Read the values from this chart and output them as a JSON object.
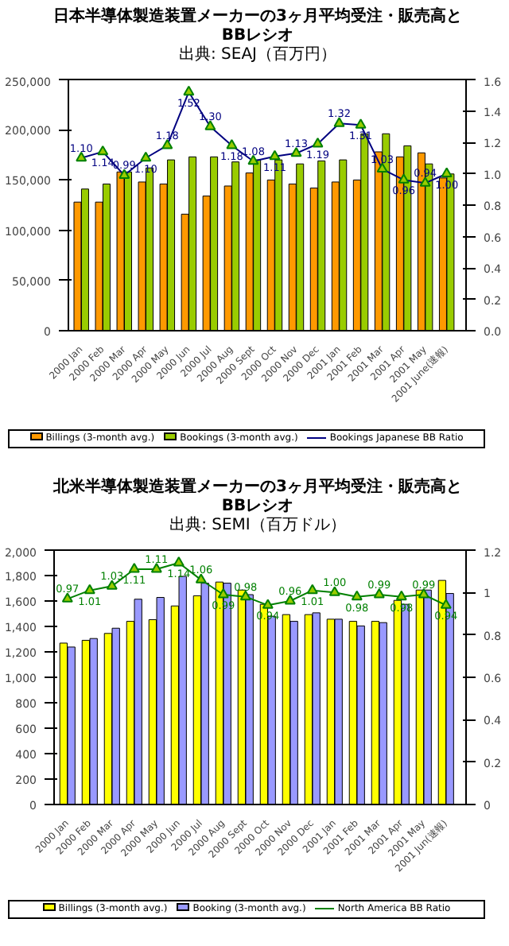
{
  "chart_data": [
    {
      "type": "bar",
      "title": "日本半導体製造装置メーカーの3ヶ月平均受注・販売高と\nBBレシオ",
      "subtitle": "出典: SEAJ（百万円）",
      "categories": [
        "2000 Jan",
        "2000 Feb",
        "2000 Mar",
        "2000 Apr",
        "2000 May",
        "2000 Jun",
        "2000 Jul",
        "2000 Aug",
        "2000 Sept",
        "2000 Oct",
        "2000 Nov",
        "2000 Dec",
        "2001 Jan",
        "2001 Feb",
        "2001 Mar",
        "2001 Apr",
        "2001 May",
        "2001 June(速報)"
      ],
      "series": [
        {
          "name": "Billings (3-month avg.)",
          "color": "#ff9900",
          "values": [
            128000,
            128000,
            158000,
            148000,
            146000,
            116000,
            134000,
            144000,
            157000,
            150000,
            146000,
            142000,
            148000,
            150000,
            178000,
            173000,
            177000,
            152000
          ]
        },
        {
          "name": "Bookings (3-month avg.)",
          "color": "#99cc00",
          "values": [
            141000,
            146000,
            158000,
            162000,
            170000,
            173000,
            173000,
            168000,
            170000,
            170000,
            166000,
            169000,
            170000,
            196000,
            196000,
            184000,
            166000,
            156000
          ]
        },
        {
          "name": "Bookings Japanese BB Ratio",
          "type": "line",
          "axis": "y2",
          "color": "#000080",
          "marker": "triangle",
          "values": [
            1.1,
            1.14,
            0.99,
            1.1,
            1.18,
            1.52,
            1.3,
            1.18,
            1.08,
            1.11,
            1.13,
            1.19,
            1.32,
            1.31,
            1.03,
            0.96,
            0.94,
            1.0
          ],
          "value_labels": [
            "1.10",
            "1.14",
            "0.99",
            "1.10",
            "1.18",
            "1.52",
            "1.30",
            "1.18",
            "1.08",
            "1.11",
            "1.13",
            "1.19",
            "1.32",
            "1.31",
            "1.03",
            "0.96",
            "0.94",
            "1.00"
          ]
        }
      ],
      "ylim": [
        0,
        250000
      ],
      "yticks": [
        {
          "value": 0,
          "label": "0"
        },
        {
          "value": 50000,
          "label": "50,000"
        },
        {
          "value": 100000,
          "label": "100,000"
        },
        {
          "value": 150000,
          "label": "150,000"
        },
        {
          "value": 200000,
          "label": "200,000"
        },
        {
          "value": 250000,
          "label": "250,000"
        }
      ],
      "y2lim": [
        0,
        1.6
      ],
      "y2ticks": [
        {
          "value": 0,
          "label": "0.0"
        },
        {
          "value": 0.2,
          "label": "0.2"
        },
        {
          "value": 0.4,
          "label": "0.4"
        },
        {
          "value": 0.6,
          "label": "0.6"
        },
        {
          "value": 0.8,
          "label": "0.8"
        },
        {
          "value": 1.0,
          "label": "1.0"
        },
        {
          "value": 1.2,
          "label": "1.2"
        },
        {
          "value": 1.4,
          "label": "1.4"
        },
        {
          "value": 1.6,
          "label": "1.6"
        }
      ],
      "legend": "bottom",
      "grid": false
    },
    {
      "type": "bar",
      "title": "北米半導体製造装置メーカーの3ヶ月平均受注・販売高と\nBBレシオ",
      "subtitle": "出典: SEMI（百万ドル）",
      "categories": [
        "2000 Jan",
        "2000 Feb",
        "2000 Mar",
        "2000 Apr",
        "2000 May",
        "2000 Jun",
        "2000 Jul",
        "2000 Aug",
        "2000 Sept",
        "2000 Oct",
        "2000 Nov",
        "2000 Dec",
        "2001 Jan",
        "2001 Feb",
        "2001 Mar",
        "2001 Apr",
        "2001 May",
        "2001 Jun(速報)"
      ],
      "series": [
        {
          "name": "Billings (3-month avg.)",
          "color": "#ffff00",
          "values": [
            1269,
            1291,
            1345,
            1440,
            1453,
            1561,
            1641,
            1749,
            1686,
            1574,
            1493,
            1493,
            1457,
            1440,
            1440,
            1605,
            1686,
            1762
          ]
        },
        {
          "name": "Booking (3-month avg.)",
          "color": "#9999ff",
          "values": [
            1238,
            1305,
            1386,
            1614,
            1628,
            1794,
            1740,
            1740,
            1650,
            1480,
            1440,
            1507,
            1457,
            1404,
            1430,
            1574,
            1686,
            1659
          ]
        },
        {
          "name": "North America BB Ratio",
          "type": "line",
          "axis": "y2",
          "color": "#008000",
          "marker": "triangle",
          "values": [
            0.97,
            1.01,
            1.03,
            1.11,
            1.11,
            1.14,
            1.06,
            0.99,
            0.98,
            0.94,
            0.96,
            1.01,
            1.0,
            0.98,
            0.99,
            0.98,
            0.99,
            0.94
          ],
          "value_labels": [
            "0.97",
            "1.01",
            "1.03",
            "1.11",
            "1.11",
            "1.14",
            "1.06",
            "0.99",
            "0.98",
            "0.94",
            "0.96",
            "1.01",
            "1.00",
            "0.98",
            "0.99",
            "0.98",
            "0.99",
            "0.94"
          ]
        }
      ],
      "ylim": [
        0,
        2000
      ],
      "yticks": [
        {
          "value": 0,
          "label": "0"
        },
        {
          "value": 200,
          "label": "200"
        },
        {
          "value": 400,
          "label": "400"
        },
        {
          "value": 600,
          "label": "600"
        },
        {
          "value": 800,
          "label": "800"
        },
        {
          "value": 1000,
          "label": "1,000"
        },
        {
          "value": 1200,
          "label": "1,200"
        },
        {
          "value": 1400,
          "label": "1,400"
        },
        {
          "value": 1600,
          "label": "1,600"
        },
        {
          "value": 1800,
          "label": "1,800"
        },
        {
          "value": 2000,
          "label": "2,000"
        }
      ],
      "y2lim": [
        0,
        1.2
      ],
      "y2ticks": [
        0,
        0.2,
        0.4,
        0.6,
        0.8,
        1,
        1.2
      ],
      "legend": "bottom",
      "grid": false
    }
  ]
}
